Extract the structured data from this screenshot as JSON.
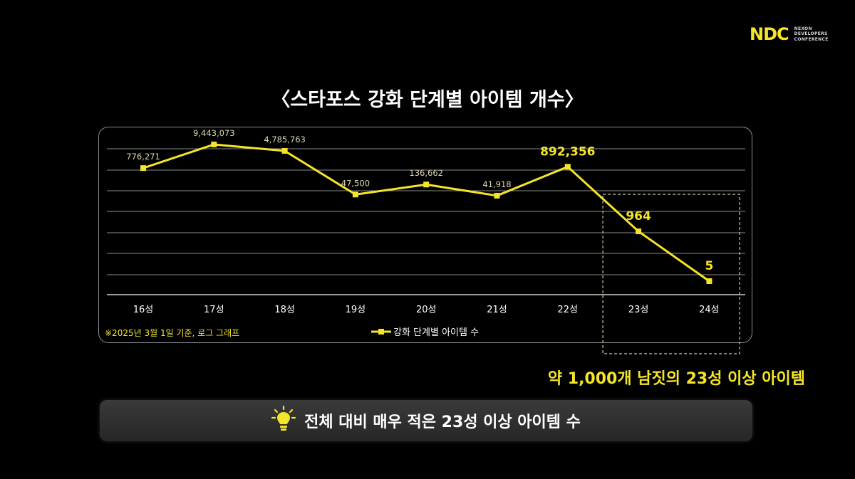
{
  "logo": {
    "mark": "NDC",
    "lines": [
      "NEXON",
      "DEVELOPERS",
      "CONFERENCE"
    ]
  },
  "slide_title": "〈스타포스 강화 단계별 아이템 개수〉",
  "footnote": "※2025년 3월 1일 기준, 로그 그래프",
  "callout": "약 1,000개 남짓의 23성 이상 아이템",
  "banner": {
    "icon": "lightbulb-icon",
    "text": "전체 대비 매우 적은 23성 이상 아이템 수"
  },
  "colors": {
    "accent": "#f5e52a",
    "background": "#000000",
    "grid": "#8a8a8a"
  },
  "chart_data": {
    "type": "line",
    "scale": "log",
    "grid": true,
    "legend_position": "bottom-center",
    "categories": [
      "16성",
      "17성",
      "18성",
      "19성",
      "20성",
      "21성",
      "22성",
      "23성",
      "24성"
    ],
    "series": [
      {
        "name": "강화 단계별 아이템 수",
        "values": [
          776271,
          9443073,
          4785763,
          47500,
          136662,
          41918,
          892356,
          964,
          5
        ],
        "labels": [
          "776,271",
          "9,443,073",
          "4,785,763",
          "47,500",
          "136,662",
          "41,918",
          "892,356",
          "964",
          "5"
        ]
      }
    ],
    "highlight": {
      "from": "23성",
      "to": "24성"
    }
  }
}
